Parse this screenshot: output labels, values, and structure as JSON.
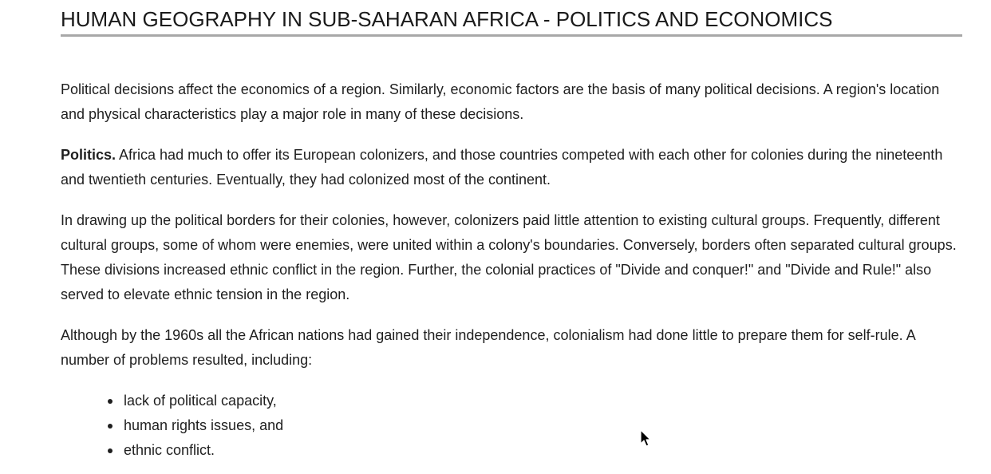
{
  "document": {
    "title": "HUMAN GEOGRAPHY IN SUB-SAHARAN AFRICA - POLITICS AND ECONOMICS",
    "paragraphs": {
      "intro": "Political decisions affect the economics of a region. Similarly, economic factors are the basis of many political decisions. A region's location and physical characteristics play a major role in many of these decisions.",
      "politics_label": "Politics.",
      "politics_text": " Africa had much to offer its European colonizers, and those countries competed with each other for colonies during the nineteenth and twentieth centuries. Eventually, they had colonized most of the continent.",
      "borders": "In drawing up the political borders for their colonies, however, colonizers paid little attention to existing cultural groups. Frequently, different cultural groups, some of whom were enemies, were united within a colony's boundaries. Conversely, borders often separated cultural groups. These divisions increased ethnic conflict in the region. Further, the colonial practices of \"Divide and conquer!\" and \"Divide and Rule!\" also served to elevate ethnic tension in the region.",
      "independence": "Although by the 1960s all the African nations had gained their independence, colonialism had done little to prepare them for self-rule. A number of problems resulted, including:"
    },
    "problems": [
      "lack of political capacity,",
      "human rights issues, and",
      "ethnic conflict."
    ]
  },
  "icons": {
    "cursor": "mouse-pointer-icon"
  }
}
